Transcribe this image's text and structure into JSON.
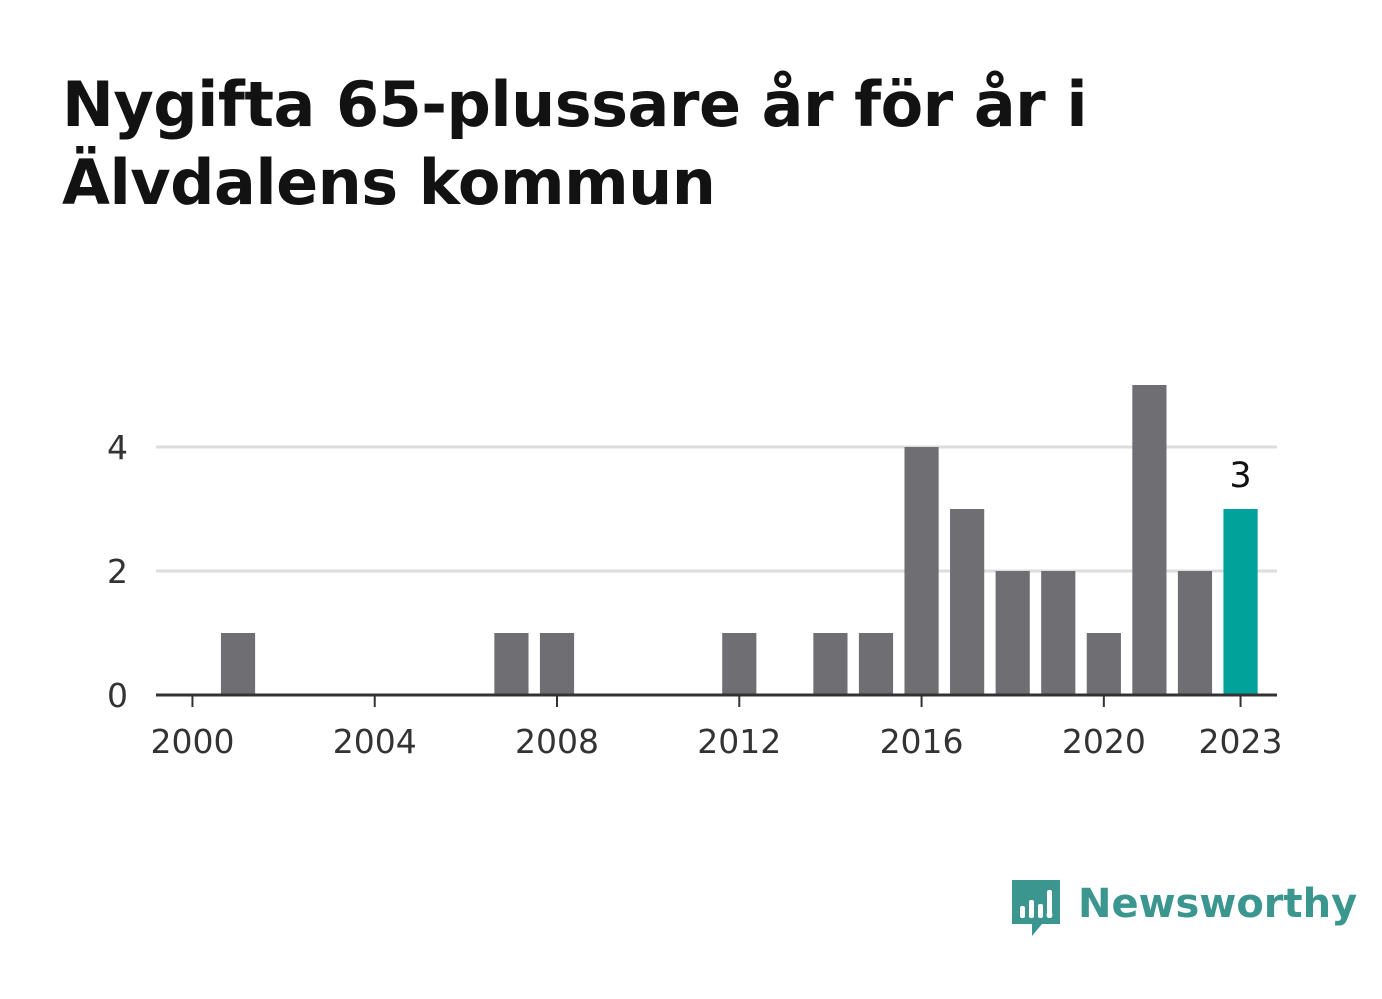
{
  "title": "Nygifta 65-plussare år för år i Älvdalens kommun",
  "brand": {
    "name": "Newsworthy",
    "icon": "newsworthy-logo-icon",
    "color": "#3a968e"
  },
  "colors": {
    "bar": "#6f6e73",
    "highlight": "#00a29a",
    "grid": "#dddddd",
    "axis": "#333333"
  },
  "chart_data": {
    "type": "bar",
    "title": "Nygifta 65-plussare år för år i Älvdalens kommun",
    "xlabel": "",
    "ylabel": "",
    "x": [
      2000,
      2001,
      2002,
      2003,
      2004,
      2005,
      2006,
      2007,
      2008,
      2009,
      2010,
      2011,
      2012,
      2013,
      2014,
      2015,
      2016,
      2017,
      2018,
      2019,
      2020,
      2021,
      2022,
      2023
    ],
    "values": [
      0,
      1,
      0,
      0,
      0,
      0,
      0,
      1,
      1,
      0,
      0,
      0,
      1,
      0,
      1,
      1,
      4,
      3,
      2,
      2,
      1,
      5,
      2,
      3
    ],
    "x_ticks": [
      "2000",
      "2004",
      "2008",
      "2012",
      "2016",
      "2020",
      "2023"
    ],
    "y_ticks": [
      "0",
      "2",
      "4"
    ],
    "ylim": [
      0,
      5
    ],
    "grid": true,
    "highlight": {
      "x": 2023,
      "label": "3"
    }
  }
}
